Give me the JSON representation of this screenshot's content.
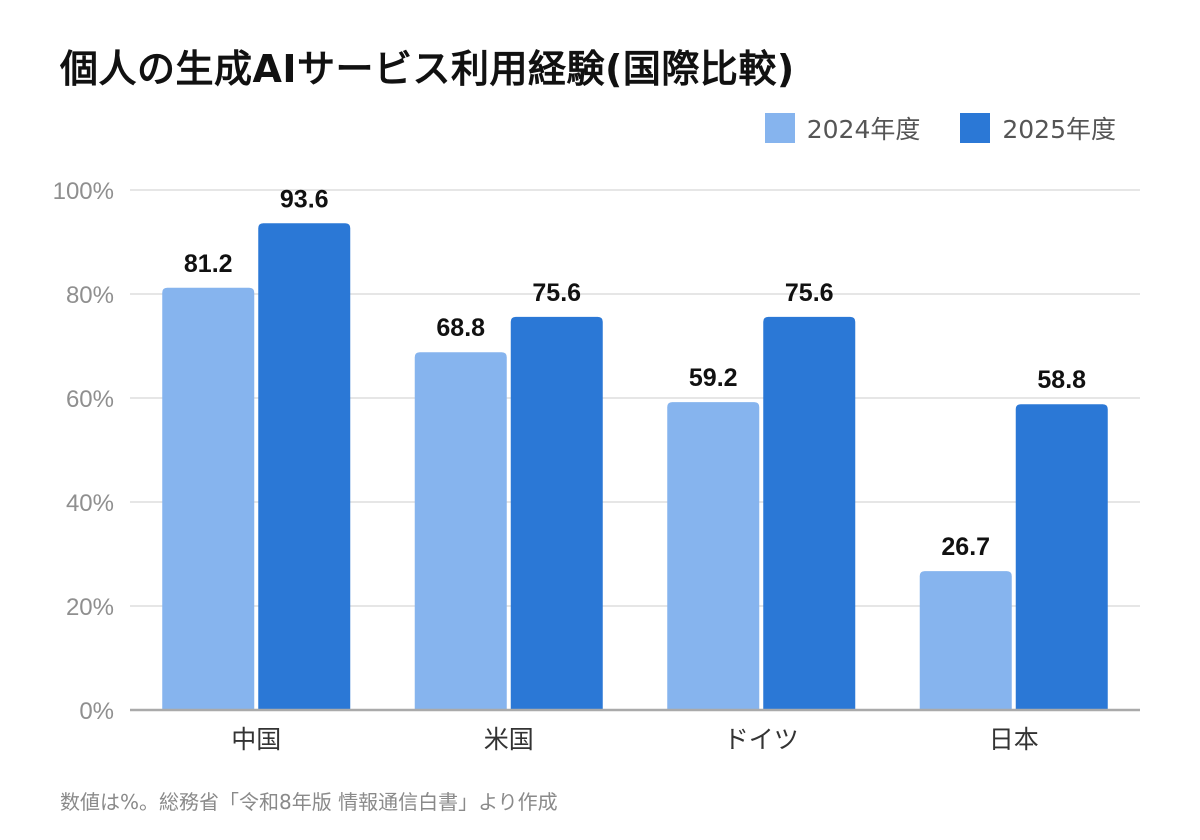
{
  "title": "個人の生成AIサービス利用経験(国際比較)",
  "source_note": "数値は%。総務省「令和8年版 情報通信白書」より作成",
  "colors": {
    "series_2024": "#86b4ee",
    "series_2025": "#2b78d6",
    "grid": "#dddddd",
    "axis": "#aaaaaa",
    "tick_text": "#8f8f8f",
    "category_text": "#333333",
    "value_label": "#111111"
  },
  "chart_data": {
    "type": "bar",
    "title": "個人の生成AIサービス利用経験(国際比較)",
    "xlabel": "",
    "ylabel": "",
    "categories": [
      "中国",
      "米国",
      "ドイツ",
      "日本"
    ],
    "series": [
      {
        "name": "2024年度",
        "values": [
          81.2,
          68.8,
          59.2,
          26.7
        ],
        "color": "#86b4ee"
      },
      {
        "name": "2025年度",
        "values": [
          93.6,
          75.6,
          75.6,
          58.8
        ],
        "color": "#2b78d6"
      }
    ],
    "ylim": [
      0,
      100
    ],
    "yticks": [
      0,
      20,
      40,
      60,
      80,
      100
    ],
    "ytick_labels": [
      "0%",
      "20%",
      "40%",
      "60%",
      "80%",
      "100%"
    ],
    "grid": true,
    "legend_position": "top-right",
    "data_labels": true
  }
}
